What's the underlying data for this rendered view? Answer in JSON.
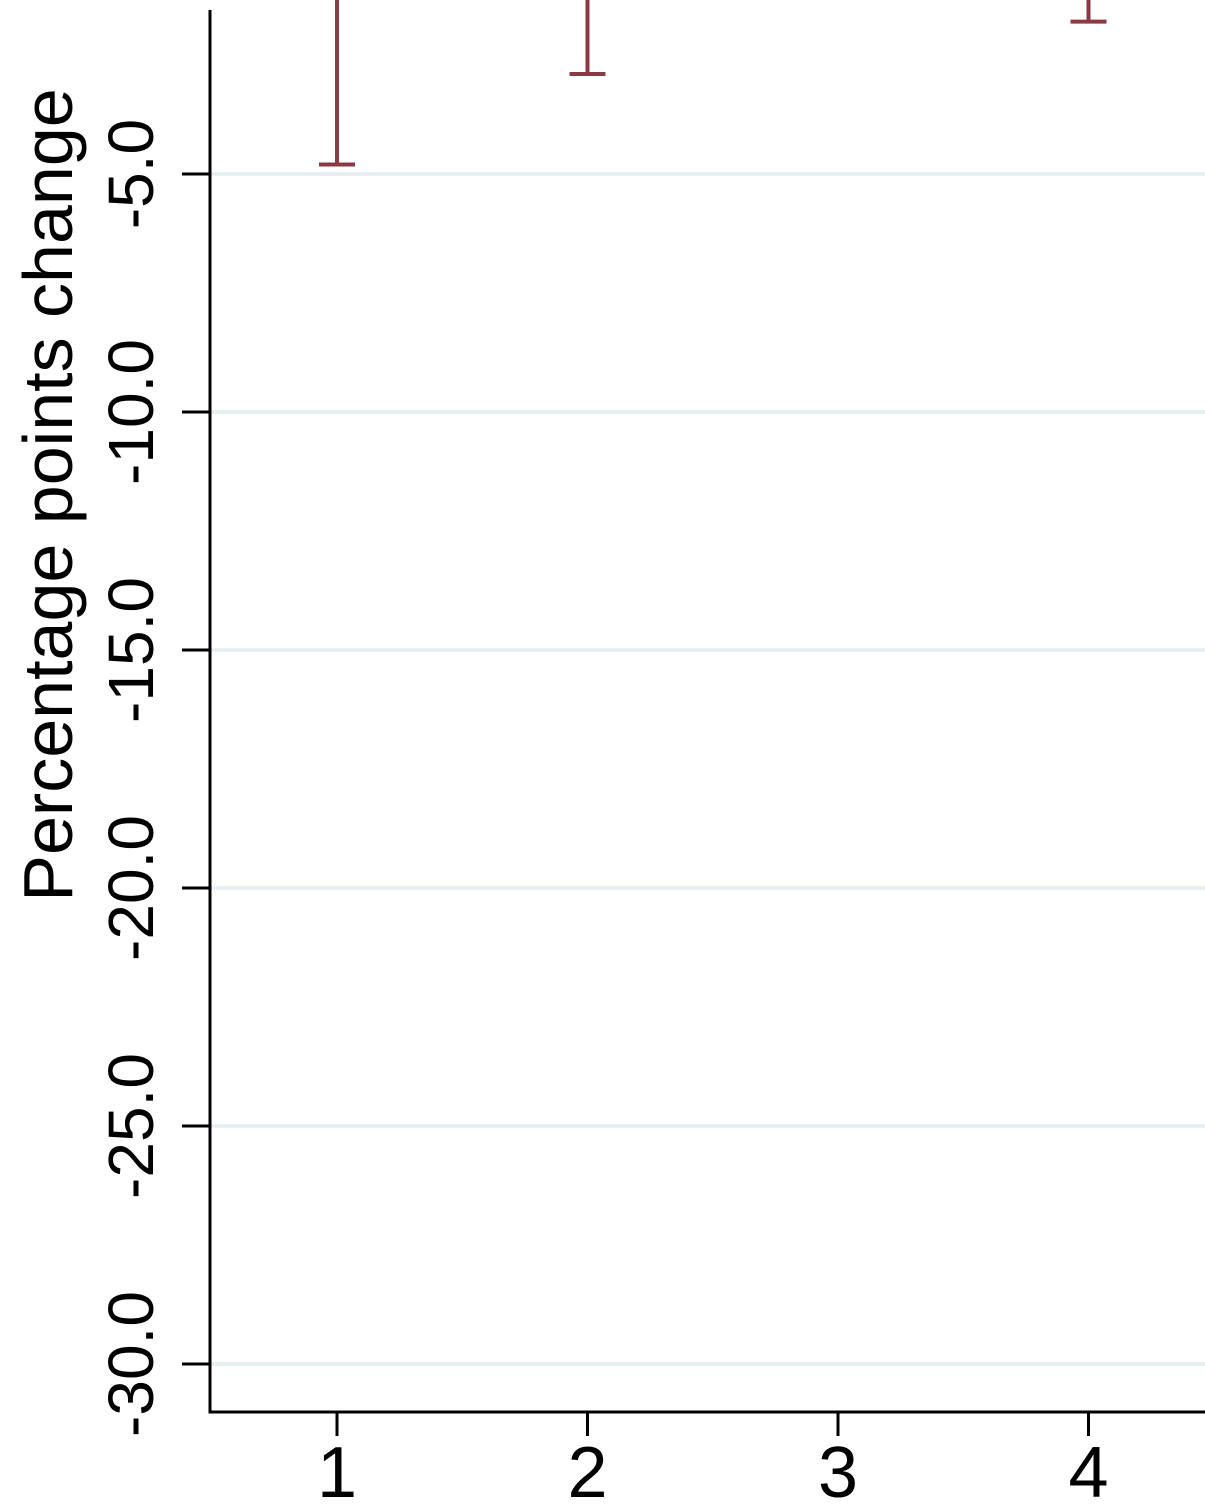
{
  "chart_data": {
    "type": "bar",
    "ylabel": "Percentage points change",
    "xlabel": "",
    "categories": [
      "1",
      "2",
      "3",
      "4"
    ],
    "x_ticks": [
      "1",
      "2",
      "3",
      "4"
    ],
    "y_ticks": [
      "-5.0",
      "-10.0",
      "-15.0",
      "-20.0",
      "-25.0",
      "-30.0"
    ],
    "y_tick_values": [
      -5,
      -10,
      -15,
      -20,
      -25,
      -30
    ],
    "ylim": [
      -31,
      -1.5
    ],
    "grid": true,
    "error_bars": [
      {
        "x": "1",
        "lower": -4.8
      },
      {
        "x": "2",
        "lower": -2.9
      },
      {
        "x": "4",
        "lower": -1.8
      }
    ],
    "colors": {
      "error_bar": "#8b3a45",
      "grid": "#e8f0f2",
      "axis": "#000000"
    }
  }
}
